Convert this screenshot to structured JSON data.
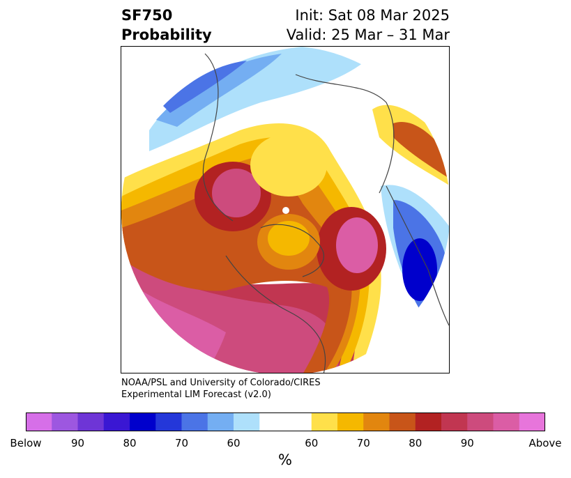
{
  "header": {
    "title_line1": "SF750",
    "title_line2": "Probability",
    "init": "Init: Sat 08 Mar 2025",
    "valid": "Valid: 25 Mar – 31 Mar"
  },
  "credit": {
    "line1": "NOAA/PSL and University of Colorado/CIRES",
    "line2": "Experimental LIM Forecast (v2.0)"
  },
  "colorbar": {
    "colors": [
      "#d66fe8",
      "#9d57e0",
      "#6e35d6",
      "#3a17d3",
      "#0000cc",
      "#2437d9",
      "#4b74e6",
      "#74aef2",
      "#aee0fb",
      "#ffffff",
      "#ffe04a",
      "#f5b800",
      "#e2860f",
      "#c85519",
      "#b22222",
      "#c13651",
      "#cd4b7d",
      "#db5da5",
      "#e775db"
    ],
    "labels": [
      "Below",
      "90",
      "80",
      "70",
      "60",
      "60",
      "70",
      "80",
      "90",
      "Above"
    ],
    "unit": "%"
  },
  "map": {
    "projection": "north-polar-stereographic",
    "variable": "SF750"
  }
}
